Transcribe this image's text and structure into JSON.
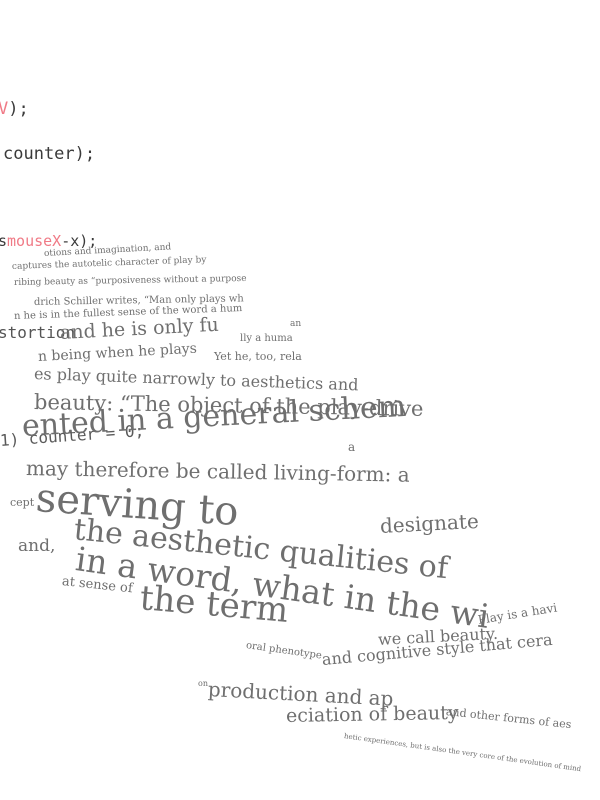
{
  "code": {
    "line1": {
      "accent": "V",
      "rest": ");"
    },
    "line2": "counter);",
    "line3": {
      "prefix": "s",
      "accent": "mouseX",
      "rest": "-x);"
    },
    "line4": "1) counter = 0;"
  },
  "poem": {
    "l01": "otions and imagination, and",
    "l02": "captures the autotelic character of play by",
    "l03": "ribing beauty as “purposiveness without a purpose",
    "l04": "drich Schiller writes, “Man only plays wh",
    "l05": "n he is in the fullest sense of the word a hum",
    "l06": "an",
    "l07": "stortion",
    "l08": "and he is only fu",
    "l09": "lly a huma",
    "l10": "n being when he plays",
    "l11": "Yet he, too, rela",
    "l12": "es play quite narrowly to aesthetics and",
    "l13": "beauty: “The object of the play-drive",
    "l14": "ented in a general schem",
    "l15": "a",
    "l16": "may therefore be called living-form: a",
    "l17": "cept",
    "l18": "serving to",
    "l19": "designate",
    "l20": "the aesthetic qualities of",
    "l21": "and,",
    "l22": "in a word, what in the wi",
    "l23": "at sense of",
    "l24": "the term",
    "l25": "we call beauty.",
    "l26": "Play is a havi",
    "l27": "oral phenotype",
    "l28": "and cognitive style that cera",
    "l29": "on",
    "l30": "production and ap",
    "l31": "eciation of beauty",
    "l32": "and other forms of aes",
    "l33": "hetic experiences, but is also the very core of the evolution of mind"
  },
  "colors": {
    "background": "#ffffff",
    "code_text": "#3a3a3a",
    "code_accent": "#f07a86",
    "poem_text": "#6f6f6f"
  }
}
